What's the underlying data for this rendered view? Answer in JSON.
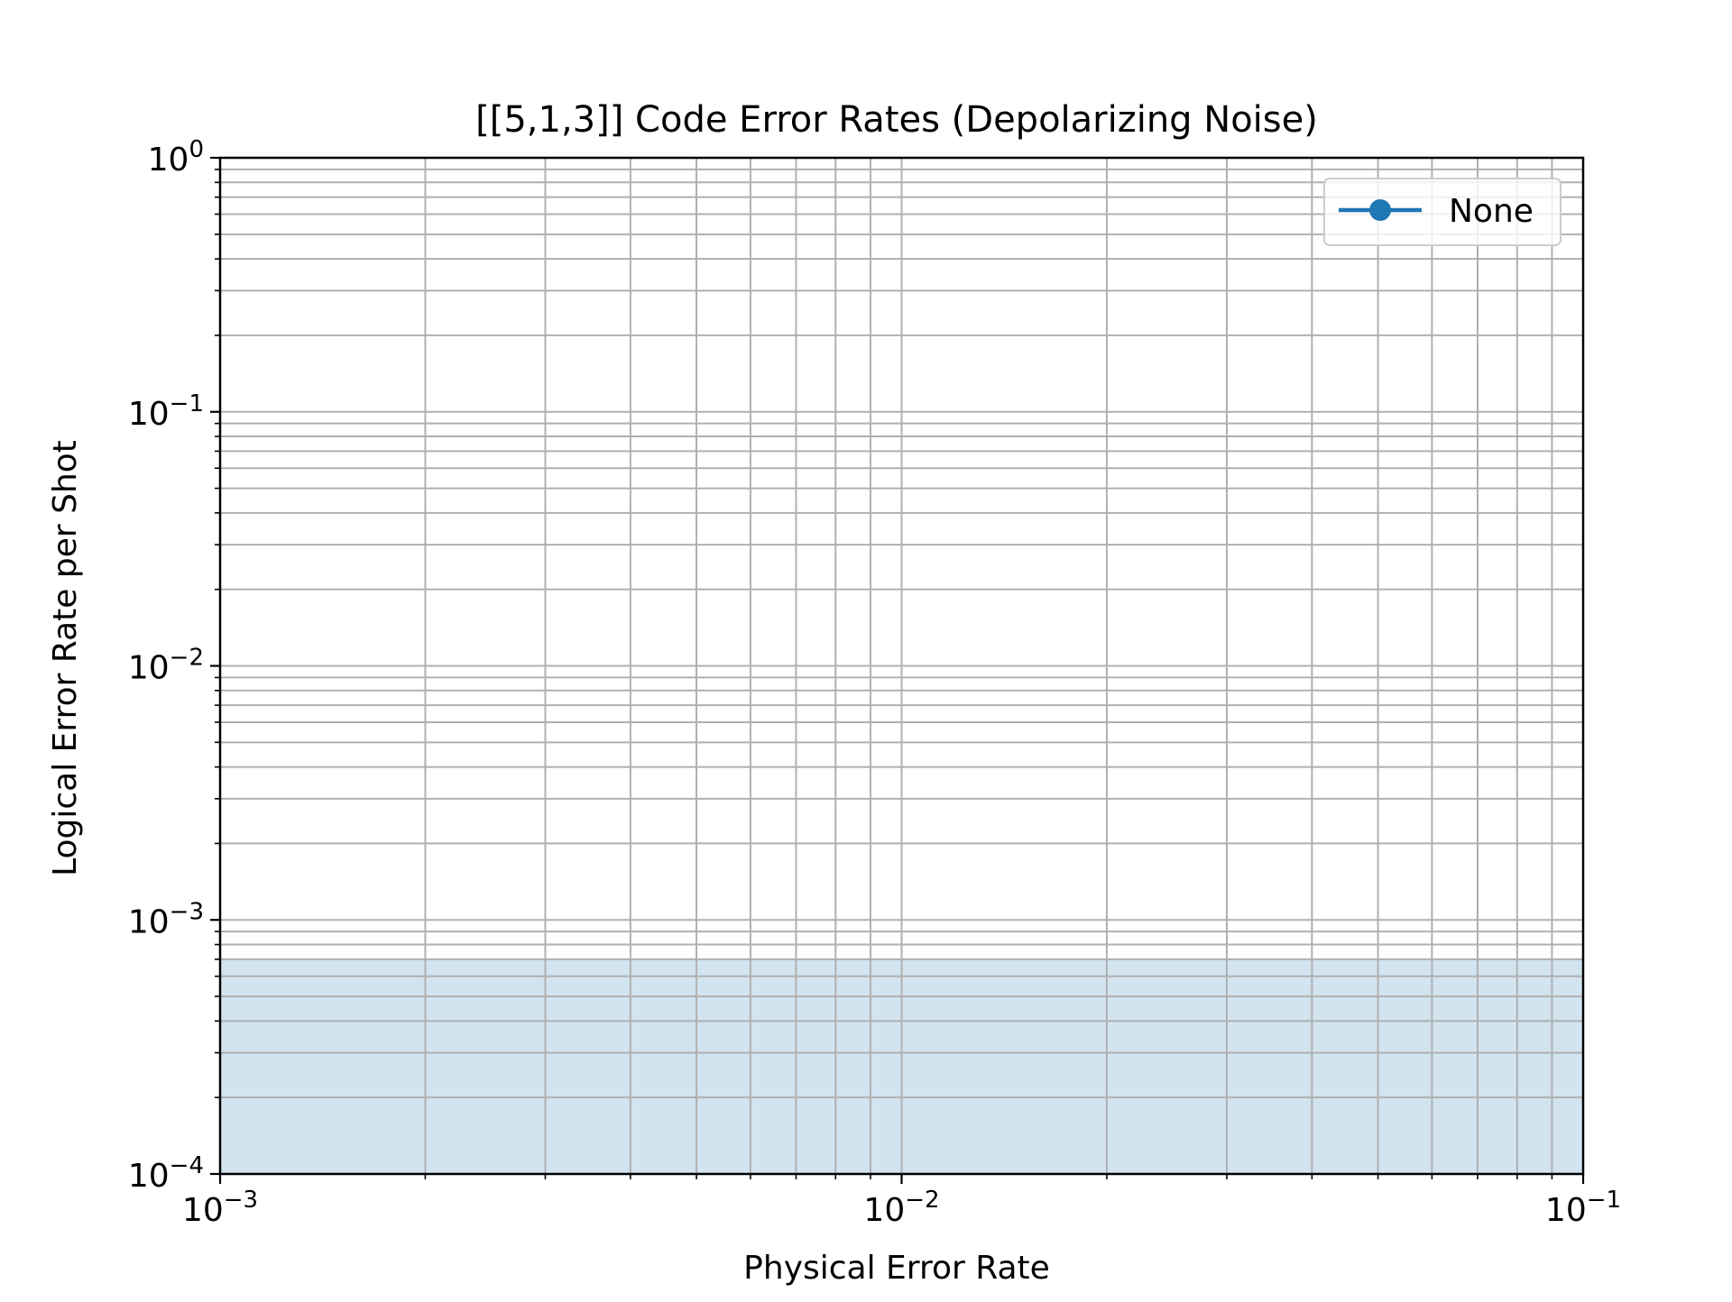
{
  "chart_data": {
    "type": "line",
    "title": "[[5,1,3]] Code Error Rates (Depolarizing Noise)",
    "xlabel": "Physical Error Rate",
    "ylabel": "Logical Error Rate per Shot",
    "xscale": "log",
    "yscale": "log",
    "xlim": [
      0.001,
      0.1
    ],
    "ylim": [
      0.0001,
      1
    ],
    "x_ticks": [
      {
        "value": 0.001,
        "base": "10",
        "exp": "−3"
      },
      {
        "value": 0.01,
        "base": "10",
        "exp": "−2"
      },
      {
        "value": 0.1,
        "base": "10",
        "exp": "−1"
      }
    ],
    "y_ticks": [
      {
        "value": 0.0001,
        "base": "10",
        "exp": "−4"
      },
      {
        "value": 0.001,
        "base": "10",
        "exp": "−3"
      },
      {
        "value": 0.01,
        "base": "10",
        "exp": "−2"
      },
      {
        "value": 0.1,
        "base": "10",
        "exp": "−1"
      },
      {
        "value": 1,
        "base": "10",
        "exp": "0"
      }
    ],
    "grid": true,
    "grid_minor": true,
    "legend_position": "top-right",
    "series": [
      {
        "name": "None",
        "color": "#1f77b4",
        "marker": "circle",
        "x": [],
        "y": []
      }
    ],
    "shaded_band": {
      "y_from": 0.0001,
      "y_to": 0.0007,
      "color": "#1f77b4",
      "opacity": 0.2
    }
  }
}
